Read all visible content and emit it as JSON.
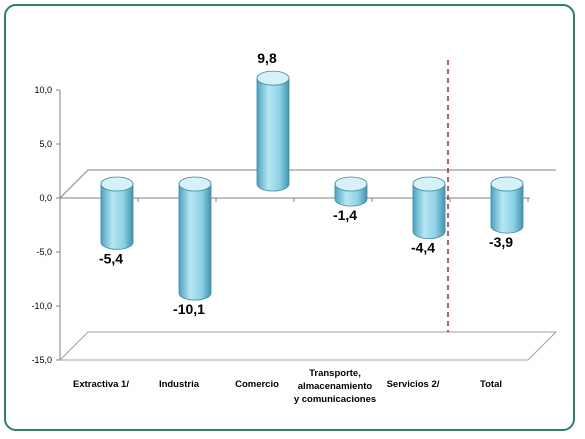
{
  "chart_data": {
    "type": "bar",
    "style": "3d-cylinder",
    "categories": [
      "Extractiva 1/",
      "Industria",
      "Comercio",
      [
        "Transporte,",
        "almacenamiento",
        "y comunicaciones"
      ],
      "Servicios 2/",
      "Total"
    ],
    "values": [
      -5.4,
      -10.1,
      9.8,
      -1.4,
      -4.4,
      -3.9
    ],
    "value_labels": [
      "-5,4",
      "-10,1",
      "9,8",
      "-1,4",
      "-4,4",
      "-3,9"
    ],
    "y_ticks": [
      "10,0",
      "5,0",
      "0,0",
      "-5,0",
      "-10,0",
      "-15,0"
    ],
    "ylim": [
      -15,
      10
    ],
    "grid": false,
    "separator": "dashed vertical line before Total",
    "colors": {
      "bar_body": "#8fd3e6",
      "bar_dark": "#4aa3bf",
      "bar_top": "#d7f1f8",
      "frame": "#2e7d6e",
      "separator": "#cc2222"
    },
    "title": "",
    "xlabel": "",
    "ylabel": ""
  }
}
